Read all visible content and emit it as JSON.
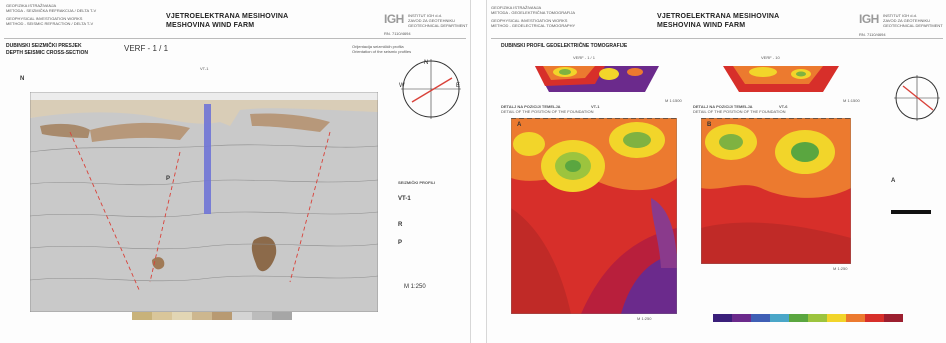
{
  "left": {
    "header_lines": [
      "GEOFIZIKA ISTRAŽIVANJA",
      "METODA - SEIZMIČKA REFRAKCIJA / DELTA T-V",
      "GEOPHYSICAL INVESTIGATION WORKS",
      "METHOD - SEISMIC REFRACTION / DELTA T-V"
    ],
    "title_line1": "VJETROELEKTRANA MESIHOVINA",
    "title_line2": "MESHOVINA WIND FARM",
    "logo": "IGH",
    "company_lines": [
      "INSTITUT IGH d.d.",
      "ZAVOD ZA GEOTEHNIKU",
      "GEOTECHNICAL DEPARTMENT"
    ],
    "report_no": "RN. 7110/4694",
    "section_title_hr": "DUBINSKI SEIZMIČKI PRESJEK",
    "section_title_en": "DEPTH SEISMIC CROSS-SECTION",
    "profile_label": "VERF - 1 / 1",
    "orientation_hr": "Orijentacija seizmičkih profila",
    "orientation_en": "Orientation of the seismic profiles",
    "north": "N",
    "profile_marker": "VT-1",
    "legend_block": "SEIZMIČKI PROFILI",
    "legend_vt": "VT-1",
    "legend_p": "P",
    "legend_r": "R",
    "scale": "M 1:250"
  },
  "right": {
    "header_lines": [
      "GEOFIZIKA ISTRAŽIVANJA",
      "METODA - GEOELEKTRIČNA TOMOGRAFIJA",
      "GEOPHYSICAL INVESTIGATION WORKS",
      "METHOD - GEOELECTRICAL TOMOGRAPHY"
    ],
    "title_line1": "VJETROELEKTRANA MESIHOVINA",
    "title_line2": "MESHOVINA WIND FARM",
    "logo": "IGH",
    "company_lines": [
      "INSTITUT IGH d.d.",
      "ZAVOD ZA GEOTEHNIKU",
      "GEOTECHNICAL DEPARTMENT"
    ],
    "report_no": "RN. 7110/4694",
    "section_title": "DUBINSKI PROFIL GEOELEKTRIČNE TOMOGRAFIJE",
    "top_profile_1": "VERF - 1 / 1",
    "top_profile_2": "VERF - 10",
    "detail_title_1": "DETALJ NA POZICIJI TEMELJA",
    "detail_title_2": "DETALJ NA POZICIJI TEMELJA",
    "detail_sub": "DETAIL OF THE POSITION OF THE FOUNDATION",
    "detail_marker_1": "VT-1",
    "detail_marker_2": "VT-6",
    "scale_detail": "M 1:250",
    "scale_small": "M 1:1500",
    "scale_right": "M 1:250",
    "legend_a": "A",
    "legend_b": "B"
  },
  "colors": {
    "rock_gray": "#c9c9c9",
    "soil_brown": "#b7987a",
    "profile_blue": "#6f74d6",
    "fault_red": "#d9423a",
    "res_purple": "#6b2a8c",
    "res_red": "#d72f2a",
    "res_orange": "#ec7a2f",
    "res_yellow": "#f2d52a",
    "res_green": "#7fb241"
  }
}
